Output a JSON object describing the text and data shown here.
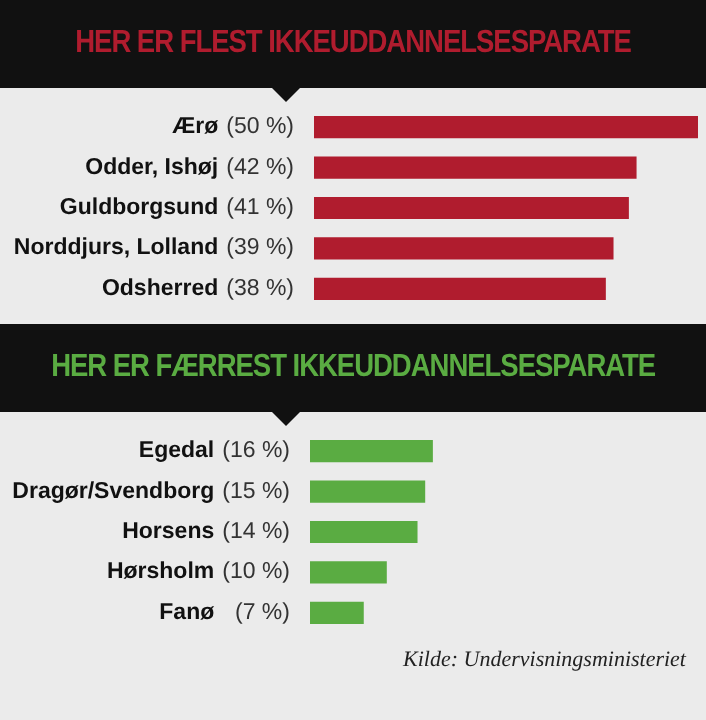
{
  "chart_data": [
    {
      "type": "bar",
      "orientation": "horizontal",
      "title": "HER ER FLEST IKKEUDDANNELSESPARATE",
      "categories": [
        "Ærø",
        "Odder, Ishøj",
        "Guldborgsund",
        "Norddjurs, Lolland",
        "Odsherred"
      ],
      "values": [
        50,
        42,
        41,
        39,
        38
      ],
      "value_labels": [
        "(50 %)",
        "(42 %)",
        "(41 %)",
        "(39 %)",
        "(38 %)"
      ],
      "color": "#b01c2e"
    },
    {
      "type": "bar",
      "orientation": "horizontal",
      "title": "HER ER FÆRREST IKKEUDDANNELSESPARATE",
      "categories": [
        "Egedal",
        "Dragør/Svendborg",
        "Horsens",
        "Hørsholm",
        "Fanø"
      ],
      "values": [
        16,
        15,
        14,
        10,
        7
      ],
      "value_labels": [
        "(16 %)",
        "(15 %)",
        "(14 %)",
        "(10 %)",
        "(7 %)"
      ],
      "color": "#5aac42",
      "annotations": [
        "Kilde: Undervisningsministeriet"
      ]
    }
  ]
}
